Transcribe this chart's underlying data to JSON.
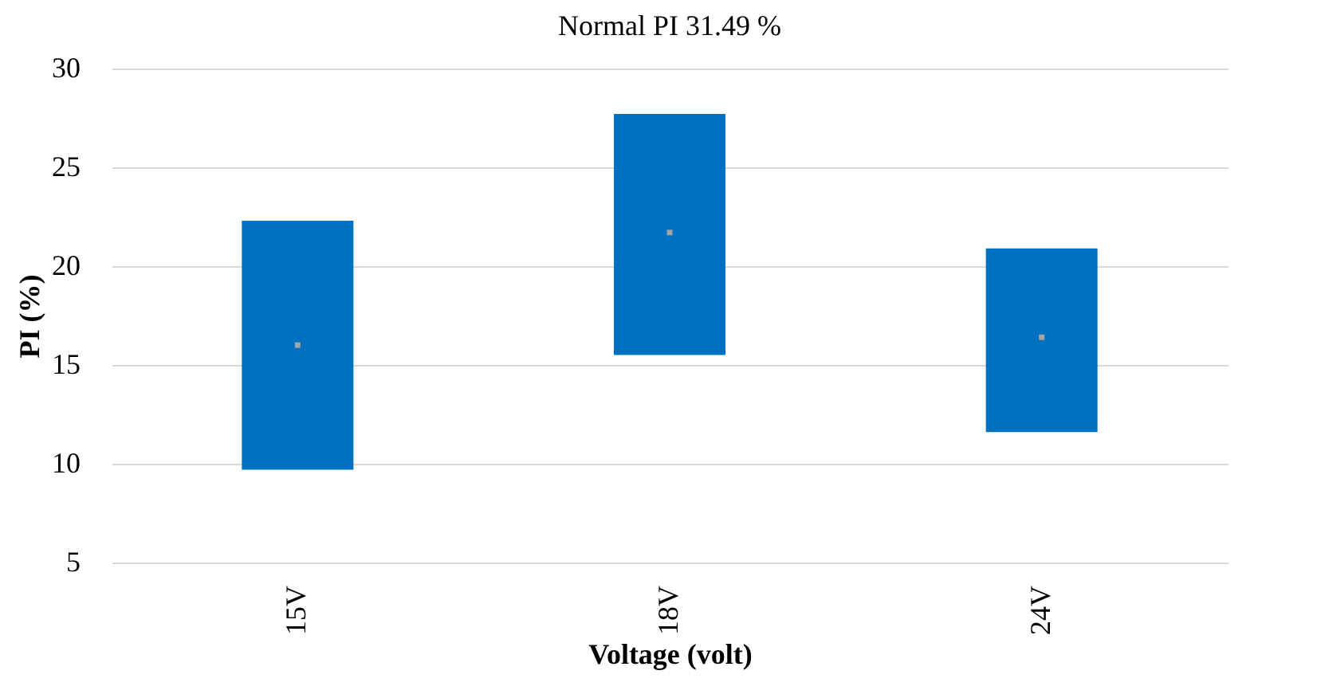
{
  "chart_data": {
    "type": "bar",
    "title": "Normal PI 31.49 %",
    "xlabel": "Voltage (volt)",
    "ylabel": "PI (%)",
    "categories": [
      "15V",
      "18V",
      "24V"
    ],
    "series": [
      {
        "type": "bar",
        "color": "#0070c0",
        "base": [
          9.7,
          15.5,
          11.6
        ],
        "values": [
          12.6,
          12.2,
          9.3
        ]
      },
      {
        "type": "scatter",
        "color": "#a5a5a5",
        "marker": "square",
        "x": [
          "15V",
          "18V",
          "24V"
        ],
        "values": [
          16.0,
          21.7,
          16.4
        ]
      }
    ],
    "ylim": [
      5,
      30
    ],
    "yticks": [
      5,
      10,
      15,
      20,
      25,
      30
    ],
    "grid": "y"
  }
}
